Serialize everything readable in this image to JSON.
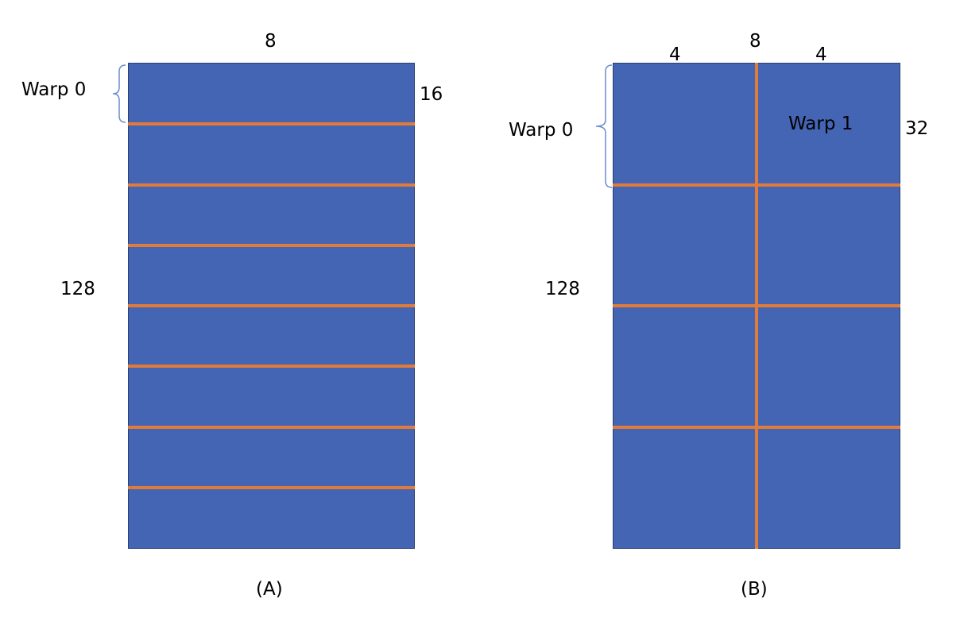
{
  "colors": {
    "tile_fill": "#4464b4",
    "divider": "#e07b39",
    "brace": "#6c8ccf",
    "text": "#000000"
  },
  "panel_a": {
    "caption": "(A)",
    "width_label": "8",
    "height_label": "128",
    "row_height_label": "16",
    "warp_label": "Warp 0",
    "row_count": 8
  },
  "panel_b": {
    "caption": "(B)",
    "width_label": "8",
    "left_width_label": "4",
    "right_width_label": "4",
    "height_label": "128",
    "row_height_label": "32",
    "warp0_label": "Warp 0",
    "warp1_label": "Warp 1",
    "row_count": 4,
    "column_count": 2
  }
}
